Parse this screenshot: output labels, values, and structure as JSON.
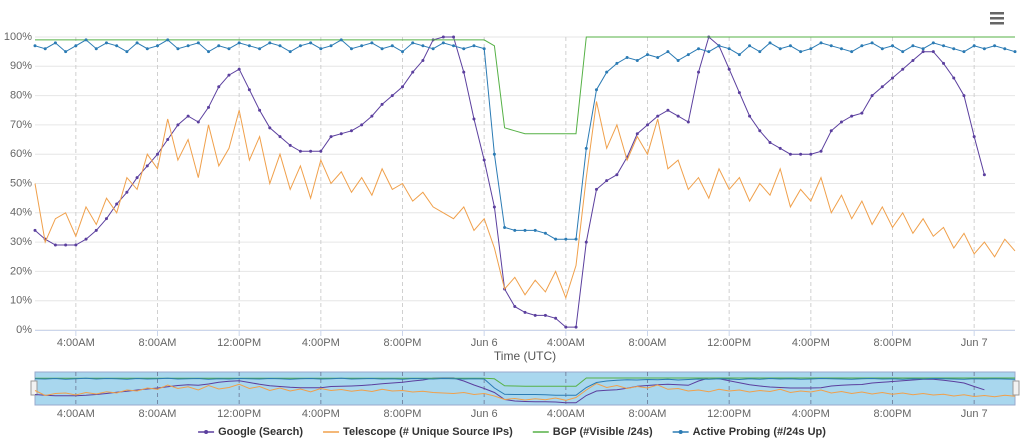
{
  "chart_data": {
    "type": "line",
    "x_label": "Time (UTC)",
    "x": [
      2,
      2.5,
      3,
      3.5,
      4,
      4.5,
      5,
      5.5,
      6,
      6.5,
      7,
      7.5,
      8,
      8.5,
      9,
      9.5,
      10,
      10.5,
      11,
      11.5,
      12,
      12.5,
      13,
      13.5,
      14,
      14.5,
      15,
      15.5,
      16,
      16.5,
      17,
      17.5,
      18,
      18.5,
      19,
      19.5,
      20,
      20.5,
      21,
      21.5,
      22,
      22.5,
      23,
      23.5,
      24,
      24.5,
      25,
      25.5,
      26,
      26.5,
      27,
      27.5,
      28,
      28.5,
      29,
      29.5,
      30,
      30.5,
      31,
      31.5,
      32,
      32.5,
      33,
      33.5,
      34,
      34.5,
      35,
      35.5,
      36,
      36.5,
      37,
      37.5,
      38,
      38.5,
      39,
      39.5,
      40,
      40.5,
      41,
      41.5,
      42,
      42.5,
      43,
      43.5,
      44,
      44.5,
      45,
      45.5,
      46,
      46.5,
      47,
      47.5,
      48,
      48.5,
      49,
      49.5,
      50
    ],
    "series": [
      {
        "name": "Google (Search)",
        "color": "#5b3f9e",
        "marker": true,
        "values": [
          34,
          31,
          29,
          29,
          29,
          31,
          34,
          38,
          43,
          47,
          52,
          56,
          60,
          65,
          70,
          73,
          71,
          76,
          83,
          87,
          89,
          82,
          75,
          69,
          66,
          63,
          61,
          61,
          61,
          66,
          67,
          68,
          70,
          73,
          77,
          80,
          83,
          88,
          92,
          99,
          100,
          100,
          88,
          72,
          58,
          42,
          14,
          8,
          6,
          5,
          5,
          4,
          1,
          1,
          30,
          48,
          51,
          53,
          59,
          67,
          70,
          73,
          75,
          73,
          71,
          88,
          100,
          97,
          89,
          81,
          73,
          68,
          64,
          62,
          60,
          60,
          60,
          61,
          68,
          71,
          73,
          74,
          80,
          83,
          86,
          89,
          92,
          95,
          95,
          91,
          86,
          80,
          66,
          53,
          null,
          null,
          null
        ]
      },
      {
        "name": "Telescope (# Unique Source IPs)",
        "color": "#f0a04b",
        "marker": false,
        "values": [
          50,
          30,
          38,
          40,
          32,
          42,
          36,
          45,
          40,
          52,
          48,
          60,
          55,
          72,
          58,
          65,
          52,
          70,
          56,
          62,
          75,
          58,
          66,
          50,
          60,
          48,
          56,
          45,
          58,
          50,
          54,
          47,
          52,
          46,
          55,
          48,
          50,
          44,
          47,
          42,
          40,
          38,
          42,
          34,
          38,
          28,
          14,
          18,
          12,
          17,
          13,
          20,
          11,
          22,
          52,
          78,
          62,
          70,
          58,
          66,
          60,
          72,
          55,
          58,
          48,
          52,
          45,
          55,
          48,
          52,
          44,
          50,
          46,
          55,
          42,
          48,
          44,
          52,
          40,
          46,
          38,
          44,
          36,
          42,
          35,
          40,
          33,
          38,
          32,
          35,
          28,
          33,
          26,
          30,
          25,
          31,
          27
        ]
      },
      {
        "name": "BGP (#Visible /24s)",
        "color": "#56b146",
        "marker": false,
        "values": [
          99,
          99,
          99,
          99,
          99,
          99,
          99,
          99,
          99,
          99,
          99,
          99,
          99,
          99,
          99,
          99,
          99,
          99,
          99,
          99,
          99,
          99,
          99,
          99,
          99,
          99,
          99,
          99,
          99,
          99,
          99,
          99,
          99,
          99,
          99,
          99,
          99,
          99,
          99,
          99,
          99,
          99,
          99,
          99,
          99,
          97,
          69,
          68,
          67,
          67,
          67,
          67,
          67,
          67,
          100,
          100,
          100,
          100,
          100,
          100,
          100,
          100,
          100,
          100,
          100,
          100,
          100,
          100,
          100,
          100,
          100,
          100,
          100,
          100,
          100,
          100,
          100,
          100,
          100,
          100,
          100,
          100,
          100,
          100,
          100,
          100,
          100,
          100,
          100,
          100,
          100,
          100,
          100,
          100,
          100,
          100,
          100
        ]
      },
      {
        "name": "Active Probing (#/24s Up)",
        "color": "#2b7bb4",
        "marker": true,
        "values": [
          97,
          96,
          98,
          95,
          97,
          99,
          96,
          98,
          97,
          95,
          98,
          96,
          97,
          99,
          96,
          97,
          98,
          95,
          97,
          96,
          98,
          97,
          96,
          98,
          97,
          95,
          97,
          98,
          96,
          97,
          99,
          96,
          97,
          98,
          96,
          97,
          95,
          98,
          97,
          96,
          98,
          97,
          96,
          97,
          96,
          60,
          35,
          34,
          34,
          34,
          33,
          31,
          31,
          31,
          62,
          82,
          88,
          91,
          93,
          92,
          94,
          93,
          95,
          92,
          94,
          96,
          95,
          97,
          96,
          94,
          97,
          95,
          98,
          96,
          97,
          95,
          96,
          98,
          97,
          96,
          95,
          97,
          98,
          96,
          97,
          95,
          97,
          96,
          98,
          97,
          96,
          95,
          97,
          96,
          97,
          96,
          95
        ]
      }
    ],
    "xlim": [
      2,
      50
    ],
    "xticks": [
      {
        "value": 4,
        "label": "4:00AM"
      },
      {
        "value": 8,
        "label": "8:00AM"
      },
      {
        "value": 12,
        "label": "12:00PM"
      },
      {
        "value": 16,
        "label": "4:00PM"
      },
      {
        "value": 20,
        "label": "8:00PM"
      },
      {
        "value": 24,
        "label": "Jun 6"
      },
      {
        "value": 28,
        "label": "4:00AM"
      },
      {
        "value": 32,
        "label": "8:00AM"
      },
      {
        "value": 36,
        "label": "12:00PM"
      },
      {
        "value": 40,
        "label": "4:00PM"
      },
      {
        "value": 44,
        "label": "8:00PM"
      },
      {
        "value": 48,
        "label": "Jun 7"
      }
    ],
    "ylim": [
      0,
      100
    ],
    "yticks": [
      {
        "value": 0,
        "label": "0%"
      },
      {
        "value": 10,
        "label": "10%"
      },
      {
        "value": 20,
        "label": "20%"
      },
      {
        "value": 30,
        "label": "30%"
      },
      {
        "value": 40,
        "label": "40%"
      },
      {
        "value": 50,
        "label": "50%"
      },
      {
        "value": 60,
        "label": "60%"
      },
      {
        "value": 70,
        "label": "70%"
      },
      {
        "value": 80,
        "label": "80%"
      },
      {
        "value": 90,
        "label": "90%"
      },
      {
        "value": 100,
        "label": "100%"
      }
    ],
    "grid": true,
    "legend": "bottom"
  }
}
